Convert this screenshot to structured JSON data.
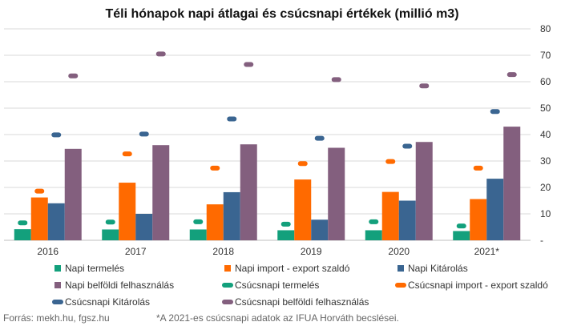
{
  "chart_data": {
    "type": "bar",
    "title": "Téli hónapok napi átlagai és csúcsnapi értékek (millió m3)",
    "categories": [
      "2016",
      "2017",
      "2018",
      "2019",
      "2020",
      "2021*"
    ],
    "ylim": [
      0,
      80
    ],
    "yticks": [
      "-",
      "10",
      "20",
      "30",
      "40",
      "50",
      "60",
      "70",
      "80"
    ],
    "grid": true,
    "legend_position": "bottom",
    "bar_series": [
      {
        "name": "Napi termelés",
        "color": "#13A07C",
        "values": [
          4.2,
          4.1,
          4.1,
          3.8,
          3.8,
          3.5
        ]
      },
      {
        "name": "Napi import - export szaldó",
        "color": "#FF6A00",
        "values": [
          16.2,
          21.8,
          13.6,
          23.0,
          18.3,
          15.6
        ]
      },
      {
        "name": "Napi Kitárolás",
        "color": "#3A6591",
        "values": [
          14.0,
          10.0,
          18.2,
          7.8,
          15.0,
          23.3
        ]
      },
      {
        "name": "Napi belföldi felhasználás",
        "color": "#835F7E",
        "values": [
          34.6,
          36.0,
          36.3,
          35.0,
          37.2,
          43.0
        ]
      }
    ],
    "marker_series": [
      {
        "name": "Csúcsnapi termelés",
        "color": "#13A07C",
        "values": [
          6.6,
          6.9,
          7.0,
          6.1,
          7.0,
          5.4
        ]
      },
      {
        "name": "Csúcsnapi import - export szaldó",
        "color": "#FF6A00",
        "values": [
          18.6,
          32.7,
          27.3,
          29.0,
          29.8,
          27.3
        ]
      },
      {
        "name": "Csúcsnapi Kitárolás",
        "color": "#3A6591",
        "values": [
          39.9,
          40.2,
          45.9,
          38.6,
          35.6,
          48.7
        ]
      },
      {
        "name": "Csúcsnapi belföldi felhasználás",
        "color": "#835F7E",
        "values": [
          62.2,
          70.5,
          66.5,
          60.8,
          58.4,
          62.7
        ]
      }
    ]
  },
  "footer": {
    "source": "Forrás: mekh.hu, fgsz.hu",
    "note": "*A 2021-es csúcsnapi adatok az IFUA Horváth becslései."
  }
}
